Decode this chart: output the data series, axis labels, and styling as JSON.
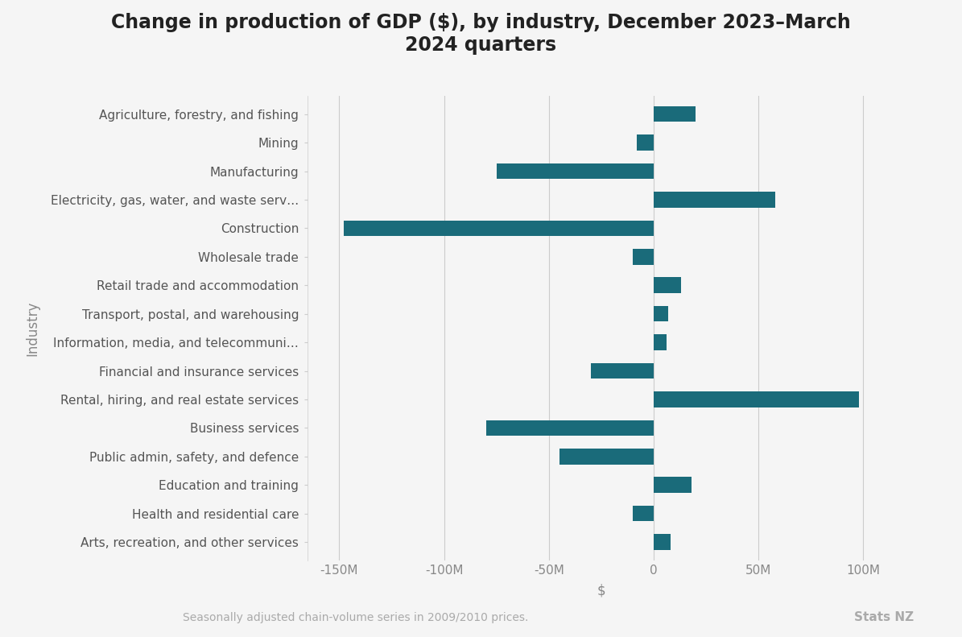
{
  "title": "Change in production of GDP ($), by industry, December 2023–March\n2024 quarters",
  "xlabel": "$",
  "ylabel": "Industry",
  "footnote": "Seasonally adjusted chain-volume series in 2009/2010 prices.",
  "footnote_right": "Stats NZ",
  "categories": [
    "Agriculture, forestry, and fishing",
    "Mining",
    "Manufacturing",
    "Electricity, gas, water, and waste serv…",
    "Construction",
    "Wholesale trade",
    "Retail trade and accommodation",
    "Transport, postal, and warehousing",
    "Information, media, and telecommuni…",
    "Financial and insurance services",
    "Rental, hiring, and real estate services",
    "Business services",
    "Public admin, safety, and defence",
    "Education and training",
    "Health and residential care",
    "Arts, recreation, and other services"
  ],
  "values": [
    20,
    -8,
    -75,
    58,
    -148,
    -10,
    13,
    7,
    6,
    -30,
    98,
    -80,
    -45,
    18,
    -10,
    8
  ],
  "bar_color": "#1a6b7a",
  "background_color": "#f5f5f5",
  "plot_background_color": "#f5f5f5",
  "xlim": [
    -165,
    115
  ],
  "xticks": [
    -150,
    -100,
    -50,
    0,
    50,
    100
  ],
  "xticklabels": [
    "-150M",
    "-100M",
    "-50M",
    "0",
    "50M",
    "100M"
  ],
  "grid_color": "#cccccc",
  "title_fontsize": 17,
  "axis_label_fontsize": 12,
  "tick_fontsize": 11,
  "footnote_fontsize": 10,
  "bar_height": 0.55
}
